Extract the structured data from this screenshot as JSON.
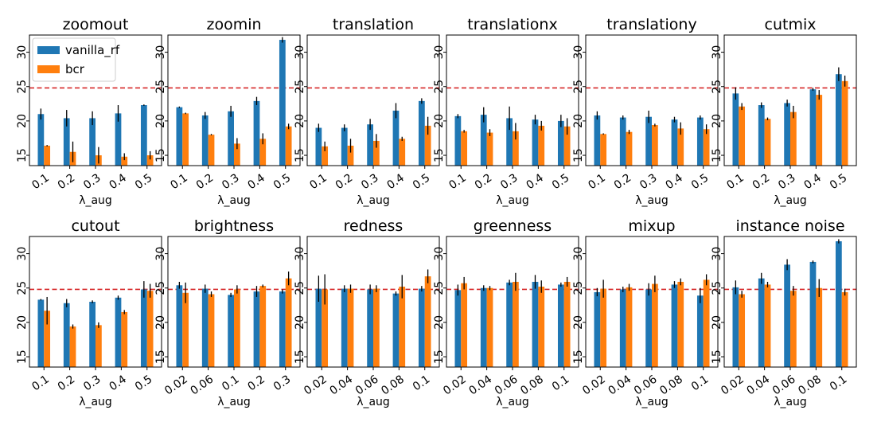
{
  "colors": {
    "vanilla_rf": "#1f77b4",
    "bcr": "#ff7f0e",
    "reference": "#d62728",
    "errorbar": "#000000"
  },
  "legend": {
    "placement": "upper-left of first panel",
    "entries": [
      "vanilla_rf",
      "bcr"
    ]
  },
  "chart_data": [
    {
      "type": "bar",
      "title": "zoomout",
      "xlabel": "λ_aug",
      "ylim": [
        13.5,
        32.5
      ],
      "yticks": [
        15,
        20,
        25,
        30
      ],
      "reference_line": 24.8,
      "categories": [
        "0.1",
        "0.2",
        "0.3",
        "0.4",
        "0.5"
      ],
      "series": [
        {
          "name": "vanilla_rf",
          "values": [
            21.0,
            20.4,
            20.4,
            21.1,
            22.3
          ],
          "errors": [
            0.8,
            1.2,
            1.0,
            1.2,
            0.1
          ]
        },
        {
          "name": "bcr",
          "values": [
            16.4,
            15.5,
            15.0,
            14.8,
            15.0
          ],
          "errors": [
            0.1,
            1.5,
            1.2,
            0.5,
            0.6
          ]
        }
      ]
    },
    {
      "type": "bar",
      "title": "zoomin",
      "xlabel": "λ_aug",
      "ylim": [
        13.5,
        32.5
      ],
      "yticks": [
        15,
        20,
        25,
        30
      ],
      "reference_line": 24.8,
      "categories": [
        "0.1",
        "0.2",
        "0.3",
        "0.4",
        "0.5"
      ],
      "series": [
        {
          "name": "vanilla_rf",
          "values": [
            22.0,
            20.8,
            21.4,
            22.9,
            31.8
          ],
          "errors": [
            0.1,
            0.5,
            0.8,
            0.6,
            0.4
          ]
        },
        {
          "name": "bcr",
          "values": [
            21.1,
            18.0,
            16.7,
            17.4,
            19.2
          ],
          "errors": [
            0.1,
            0.1,
            0.8,
            0.8,
            0.4
          ]
        }
      ]
    },
    {
      "type": "bar",
      "title": "translation",
      "xlabel": "λ_aug",
      "ylim": [
        13.5,
        32.5
      ],
      "yticks": [
        15,
        20,
        25,
        30
      ],
      "reference_line": 24.8,
      "categories": [
        "0.1",
        "0.2",
        "0.3",
        "0.4",
        "0.5"
      ],
      "series": [
        {
          "name": "vanilla_rf",
          "values": [
            19.0,
            19.0,
            19.5,
            21.5,
            22.9
          ],
          "errors": [
            0.6,
            0.5,
            0.8,
            1.1,
            0.4
          ]
        },
        {
          "name": "bcr",
          "values": [
            16.3,
            16.4,
            17.1,
            17.4,
            19.3
          ],
          "errors": [
            0.7,
            1.0,
            1.0,
            0.3,
            1.3
          ]
        }
      ]
    },
    {
      "type": "bar",
      "title": "translationx",
      "xlabel": "λ_aug",
      "ylim": [
        13.5,
        32.5
      ],
      "yticks": [
        15,
        20,
        25,
        30
      ],
      "reference_line": 24.8,
      "categories": [
        "0.1",
        "0.2",
        "0.3",
        "0.4",
        "0.5"
      ],
      "series": [
        {
          "name": "vanilla_rf",
          "values": [
            20.7,
            20.9,
            20.4,
            20.2,
            20.0
          ],
          "errors": [
            0.3,
            1.1,
            1.7,
            0.7,
            0.9
          ]
        },
        {
          "name": "bcr",
          "values": [
            18.5,
            18.3,
            18.5,
            19.3,
            19.2
          ],
          "errors": [
            0.2,
            0.5,
            1.2,
            0.7,
            1.2
          ]
        }
      ]
    },
    {
      "type": "bar",
      "title": "translationy",
      "xlabel": "λ_aug",
      "ylim": [
        13.5,
        32.5
      ],
      "yticks": [
        15,
        20,
        25,
        30
      ],
      "reference_line": 24.8,
      "categories": [
        "0.1",
        "0.2",
        "0.3",
        "0.4",
        "0.5"
      ],
      "series": [
        {
          "name": "vanilla_rf",
          "values": [
            20.8,
            20.5,
            20.6,
            20.2,
            20.5
          ],
          "errors": [
            0.6,
            0.3,
            0.9,
            0.4,
            0.3
          ]
        },
        {
          "name": "bcr",
          "values": [
            18.1,
            18.4,
            19.4,
            18.9,
            18.8
          ],
          "errors": [
            0.1,
            0.3,
            0.2,
            0.9,
            0.7
          ]
        }
      ]
    },
    {
      "type": "bar",
      "title": "cutmix",
      "xlabel": "λ_aug",
      "ylim": [
        13.5,
        32.5
      ],
      "yticks": [
        15,
        20,
        25,
        30
      ],
      "reference_line": 24.8,
      "categories": [
        "0.1",
        "0.2",
        "0.3",
        "0.4",
        "0.5"
      ],
      "series": [
        {
          "name": "vanilla_rf",
          "values": [
            24.0,
            22.3,
            22.6,
            24.6,
            26.8
          ],
          "errors": [
            0.9,
            0.4,
            0.5,
            0.2,
            1.0
          ]
        },
        {
          "name": "bcr",
          "values": [
            22.1,
            20.3,
            21.3,
            23.8,
            25.8
          ],
          "errors": [
            0.5,
            0.2,
            0.9,
            0.7,
            0.8
          ]
        }
      ]
    },
    {
      "type": "bar",
      "title": "cutout",
      "xlabel": "λ_aug",
      "ylim": [
        13.5,
        32.5
      ],
      "yticks": [
        15,
        20,
        25,
        30
      ],
      "reference_line": 24.8,
      "categories": [
        "0.1",
        "0.2",
        "0.3",
        "0.4",
        "0.5"
      ],
      "series": [
        {
          "name": "vanilla_rf",
          "values": [
            23.3,
            22.8,
            23.0,
            23.6,
            24.8
          ],
          "errors": [
            0.1,
            0.6,
            0.2,
            0.3,
            1.2
          ]
        },
        {
          "name": "bcr",
          "values": [
            21.7,
            19.4,
            19.6,
            21.5,
            24.6
          ],
          "errors": [
            2.0,
            0.3,
            0.4,
            0.3,
            1.0
          ]
        }
      ]
    },
    {
      "type": "bar",
      "title": "brightness",
      "xlabel": "λ_aug",
      "ylim": [
        13.5,
        32.5
      ],
      "yticks": [
        15,
        20,
        25,
        30
      ],
      "reference_line": 24.8,
      "categories": [
        "0.02",
        "0.06",
        "0.1",
        "0.2",
        "0.3"
      ],
      "series": [
        {
          "name": "vanilla_rf",
          "values": [
            25.4,
            24.9,
            24.0,
            24.5,
            24.5
          ],
          "errors": [
            0.5,
            0.6,
            0.3,
            0.8,
            0.3
          ]
        },
        {
          "name": "bcr",
          "values": [
            24.3,
            24.1,
            24.8,
            25.3,
            26.4
          ],
          "errors": [
            1.5,
            0.4,
            0.6,
            0.2,
            1.0
          ]
        }
      ]
    },
    {
      "type": "bar",
      "title": "redness",
      "xlabel": "λ_aug",
      "ylim": [
        13.5,
        32.5
      ],
      "yticks": [
        15,
        20,
        25,
        30
      ],
      "reference_line": 24.8,
      "categories": [
        "0.02",
        "0.04",
        "0.06",
        "0.08",
        "0.1"
      ],
      "series": [
        {
          "name": "vanilla_rf",
          "values": [
            24.9,
            24.9,
            24.8,
            24.2,
            24.9
          ],
          "errors": [
            1.9,
            0.5,
            0.7,
            0.3,
            0.4
          ]
        },
        {
          "name": "bcr",
          "values": [
            24.8,
            24.9,
            24.9,
            25.2,
            26.7
          ],
          "errors": [
            2.2,
            0.6,
            0.5,
            1.7,
            1.0
          ]
        }
      ]
    },
    {
      "type": "bar",
      "title": "greenness",
      "xlabel": "λ_aug",
      "ylim": [
        13.5,
        32.5
      ],
      "yticks": [
        15,
        20,
        25,
        30
      ],
      "reference_line": 24.8,
      "categories": [
        "0.02",
        "0.04",
        "0.06",
        "0.08",
        "0.1"
      ],
      "series": [
        {
          "name": "vanilla_rf",
          "values": [
            24.7,
            25.0,
            25.8,
            25.9,
            25.5
          ],
          "errors": [
            0.8,
            0.4,
            0.4,
            1.0,
            0.3
          ]
        },
        {
          "name": "bcr",
          "values": [
            25.7,
            25.0,
            25.9,
            25.2,
            25.9
          ],
          "errors": [
            0.9,
            0.3,
            1.3,
            0.9,
            0.7
          ]
        }
      ]
    },
    {
      "type": "bar",
      "title": "mixup",
      "xlabel": "λ_aug",
      "ylim": [
        13.5,
        32.5
      ],
      "yticks": [
        15,
        20,
        25,
        30
      ],
      "reference_line": 24.8,
      "categories": [
        "0.02",
        "0.04",
        "0.06",
        "0.08",
        "0.1"
      ],
      "series": [
        {
          "name": "vanilla_rf",
          "values": [
            24.4,
            24.8,
            24.8,
            25.5,
            23.9
          ],
          "errors": [
            0.6,
            0.4,
            0.9,
            0.5,
            1.1
          ]
        },
        {
          "name": "bcr",
          "values": [
            24.9,
            25.1,
            25.6,
            25.9,
            26.2
          ],
          "errors": [
            1.3,
            0.5,
            1.2,
            0.5,
            0.8
          ]
        }
      ]
    },
    {
      "type": "bar",
      "title": "instance noise",
      "xlabel": "λ_aug",
      "ylim": [
        13.5,
        32.5
      ],
      "yticks": [
        15,
        20,
        25,
        30
      ],
      "reference_line": 24.8,
      "categories": [
        "0.02",
        "0.04",
        "0.06",
        "0.08",
        "0.1"
      ],
      "series": [
        {
          "name": "vanilla_rf",
          "values": [
            25.1,
            26.4,
            28.4,
            28.8,
            31.8
          ],
          "errors": [
            1.0,
            0.8,
            0.8,
            0.2,
            0.3
          ]
        },
        {
          "name": "bcr",
          "values": [
            24.1,
            25.5,
            24.6,
            25.0,
            24.4
          ],
          "errors": [
            0.5,
            0.4,
            0.7,
            1.3,
            0.5
          ]
        }
      ]
    }
  ]
}
